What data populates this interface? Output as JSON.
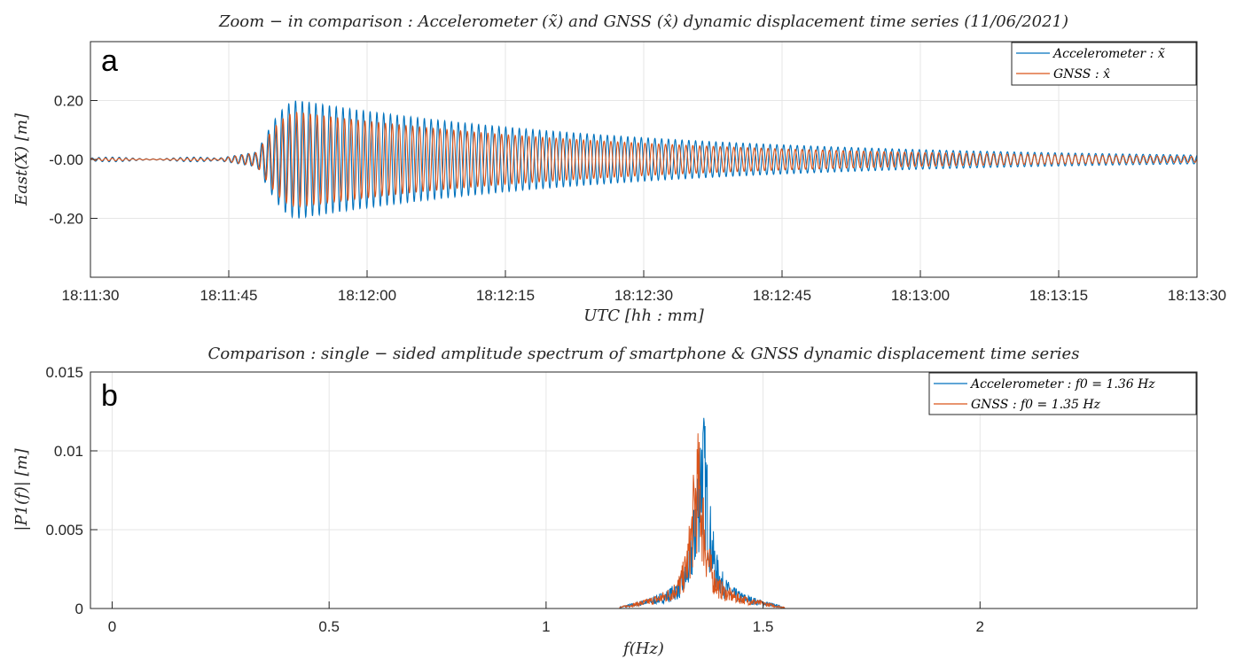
{
  "colors": {
    "accelerometer": "#0072BD",
    "gnss": "#D95319",
    "grid": "#e6e6e6",
    "axis": "#262626"
  },
  "chart_data": [
    {
      "type": "line",
      "panel_label": "a",
      "title": "Zoom − in comparison :  Accelerometer (x̃) and GNSS (x̂) dynamic displacement time series (11/06/2021)",
      "xlabel": "UTC [hh : mm]",
      "ylabel": "East(X) [m]",
      "xlim": [
        0,
        120
      ],
      "ylim": [
        -0.4,
        0.4
      ],
      "xticks": [
        0,
        15,
        30,
        45,
        60,
        75,
        90,
        105,
        120
      ],
      "xtick_labels": [
        "18:11:30",
        "18:11:45",
        "18:12:00",
        "18:12:15",
        "18:12:30",
        "18:12:45",
        "18:13:00",
        "18:13:15",
        "18:13:30"
      ],
      "yticks": [
        0.2,
        0.0,
        -0.2
      ],
      "ytick_labels": [
        "0.20",
        "-0.00",
        "-0.20"
      ],
      "grid": true,
      "legend_position": "top-right",
      "series": [
        {
          "name": "Accelerometer :  x̃",
          "color_key": "accelerometer",
          "frequency_hz": 1.36,
          "onset_s": 18,
          "peak_time_s": 22.5,
          "peak_amplitude": 0.2,
          "end_amplitude": 0.015,
          "pre_onset_amplitude": 0.005
        },
        {
          "name": "GNSS :  x̂",
          "color_key": "gnss",
          "frequency_hz": 1.35,
          "onset_s": 18,
          "peak_time_s": 22.5,
          "peak_amplitude": 0.16,
          "end_amplitude": 0.01,
          "pre_onset_amplitude": 0.003
        }
      ]
    },
    {
      "type": "line",
      "panel_label": "b",
      "title": "Comparison :  single − sided amplitude spectrum of smartphone & GNSS dynamic displacement time series",
      "xlabel": "f(Hz)",
      "ylabel": "|P1(f)| [m]",
      "xlim": [
        -0.05,
        2.5
      ],
      "ylim": [
        0,
        0.015
      ],
      "xticks": [
        0,
        0.5,
        1,
        1.5,
        2
      ],
      "xtick_labels": [
        "0",
        "0.5",
        "1",
        "1.5",
        "2"
      ],
      "yticks": [
        0,
        0.005,
        0.01,
        0.015
      ],
      "ytick_labels": [
        "0",
        "0.005",
        "0.01",
        "0.015"
      ],
      "grid": true,
      "legend_position": "top-right",
      "series": [
        {
          "name": "Accelerometer :  f0 = 1.36 Hz",
          "color_key": "accelerometer",
          "peak_freq_hz": 1.36,
          "peak_value": 0.0125,
          "band_hz": [
            1.17,
            1.55
          ]
        },
        {
          "name": "GNSS :  f0 = 1.35 Hz",
          "color_key": "gnss",
          "peak_freq_hz": 1.35,
          "peak_value": 0.0105,
          "band_hz": [
            1.17,
            1.55
          ]
        }
      ]
    }
  ]
}
